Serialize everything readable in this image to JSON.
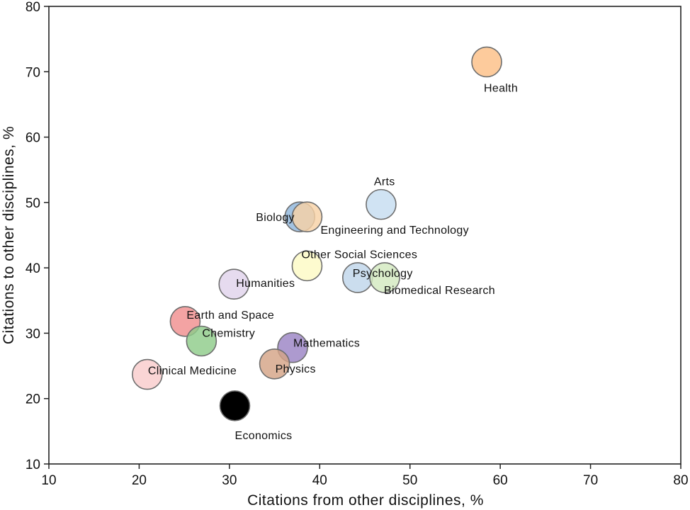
{
  "chart_data": {
    "type": "scatter",
    "title": "",
    "xlabel": "Citations from other disciplines, %",
    "ylabel": "Citations to other disciplines, %",
    "xlim": [
      10,
      80
    ],
    "ylim": [
      10,
      80
    ],
    "xticks": [
      "10",
      "20",
      "30",
      "40",
      "50",
      "60",
      "70",
      "80"
    ],
    "yticks": [
      "10",
      "20",
      "30",
      "40",
      "50",
      "60",
      "70",
      "80"
    ],
    "grid": false,
    "points": [
      {
        "label": "Health",
        "x": 58.5,
        "y": 71.5,
        "color": "#fdbf86"
      },
      {
        "label": "Arts",
        "x": 46.8,
        "y": 49.7,
        "color": "#c6ddf0"
      },
      {
        "label": "Biology",
        "x": 37.8,
        "y": 47.8,
        "color": "#8fb6dc"
      },
      {
        "label": "Engineering and Technology",
        "x": 38.6,
        "y": 47.8,
        "color": "#f8d2a6"
      },
      {
        "label": "Other Social Sciences",
        "x": 38.6,
        "y": 40.3,
        "color": "#fdfac4"
      },
      {
        "label": "Psychology",
        "x": 44.2,
        "y": 38.5,
        "color": "#bfd5ea"
      },
      {
        "label": "Biomedical Research",
        "x": 47.2,
        "y": 38.5,
        "color": "#d3e9c0"
      },
      {
        "label": "Humanities",
        "x": 30.5,
        "y": 37.5,
        "color": "#e0d3ec"
      },
      {
        "label": "Earth and Space",
        "x": 25.1,
        "y": 31.8,
        "color": "#f08f8f"
      },
      {
        "label": "Chemistry",
        "x": 26.9,
        "y": 28.8,
        "color": "#8fcc8a"
      },
      {
        "label": "Mathematics",
        "x": 37.0,
        "y": 27.8,
        "color": "#9b84c4"
      },
      {
        "label": "Physics",
        "x": 35.0,
        "y": 25.3,
        "color": "#d4a486"
      },
      {
        "label": "Clinical Medicine",
        "x": 20.9,
        "y": 23.7,
        "color": "#f9cccc"
      },
      {
        "label": "Economics",
        "x": 30.6,
        "y": 18.9,
        "color": "#000000"
      }
    ]
  }
}
